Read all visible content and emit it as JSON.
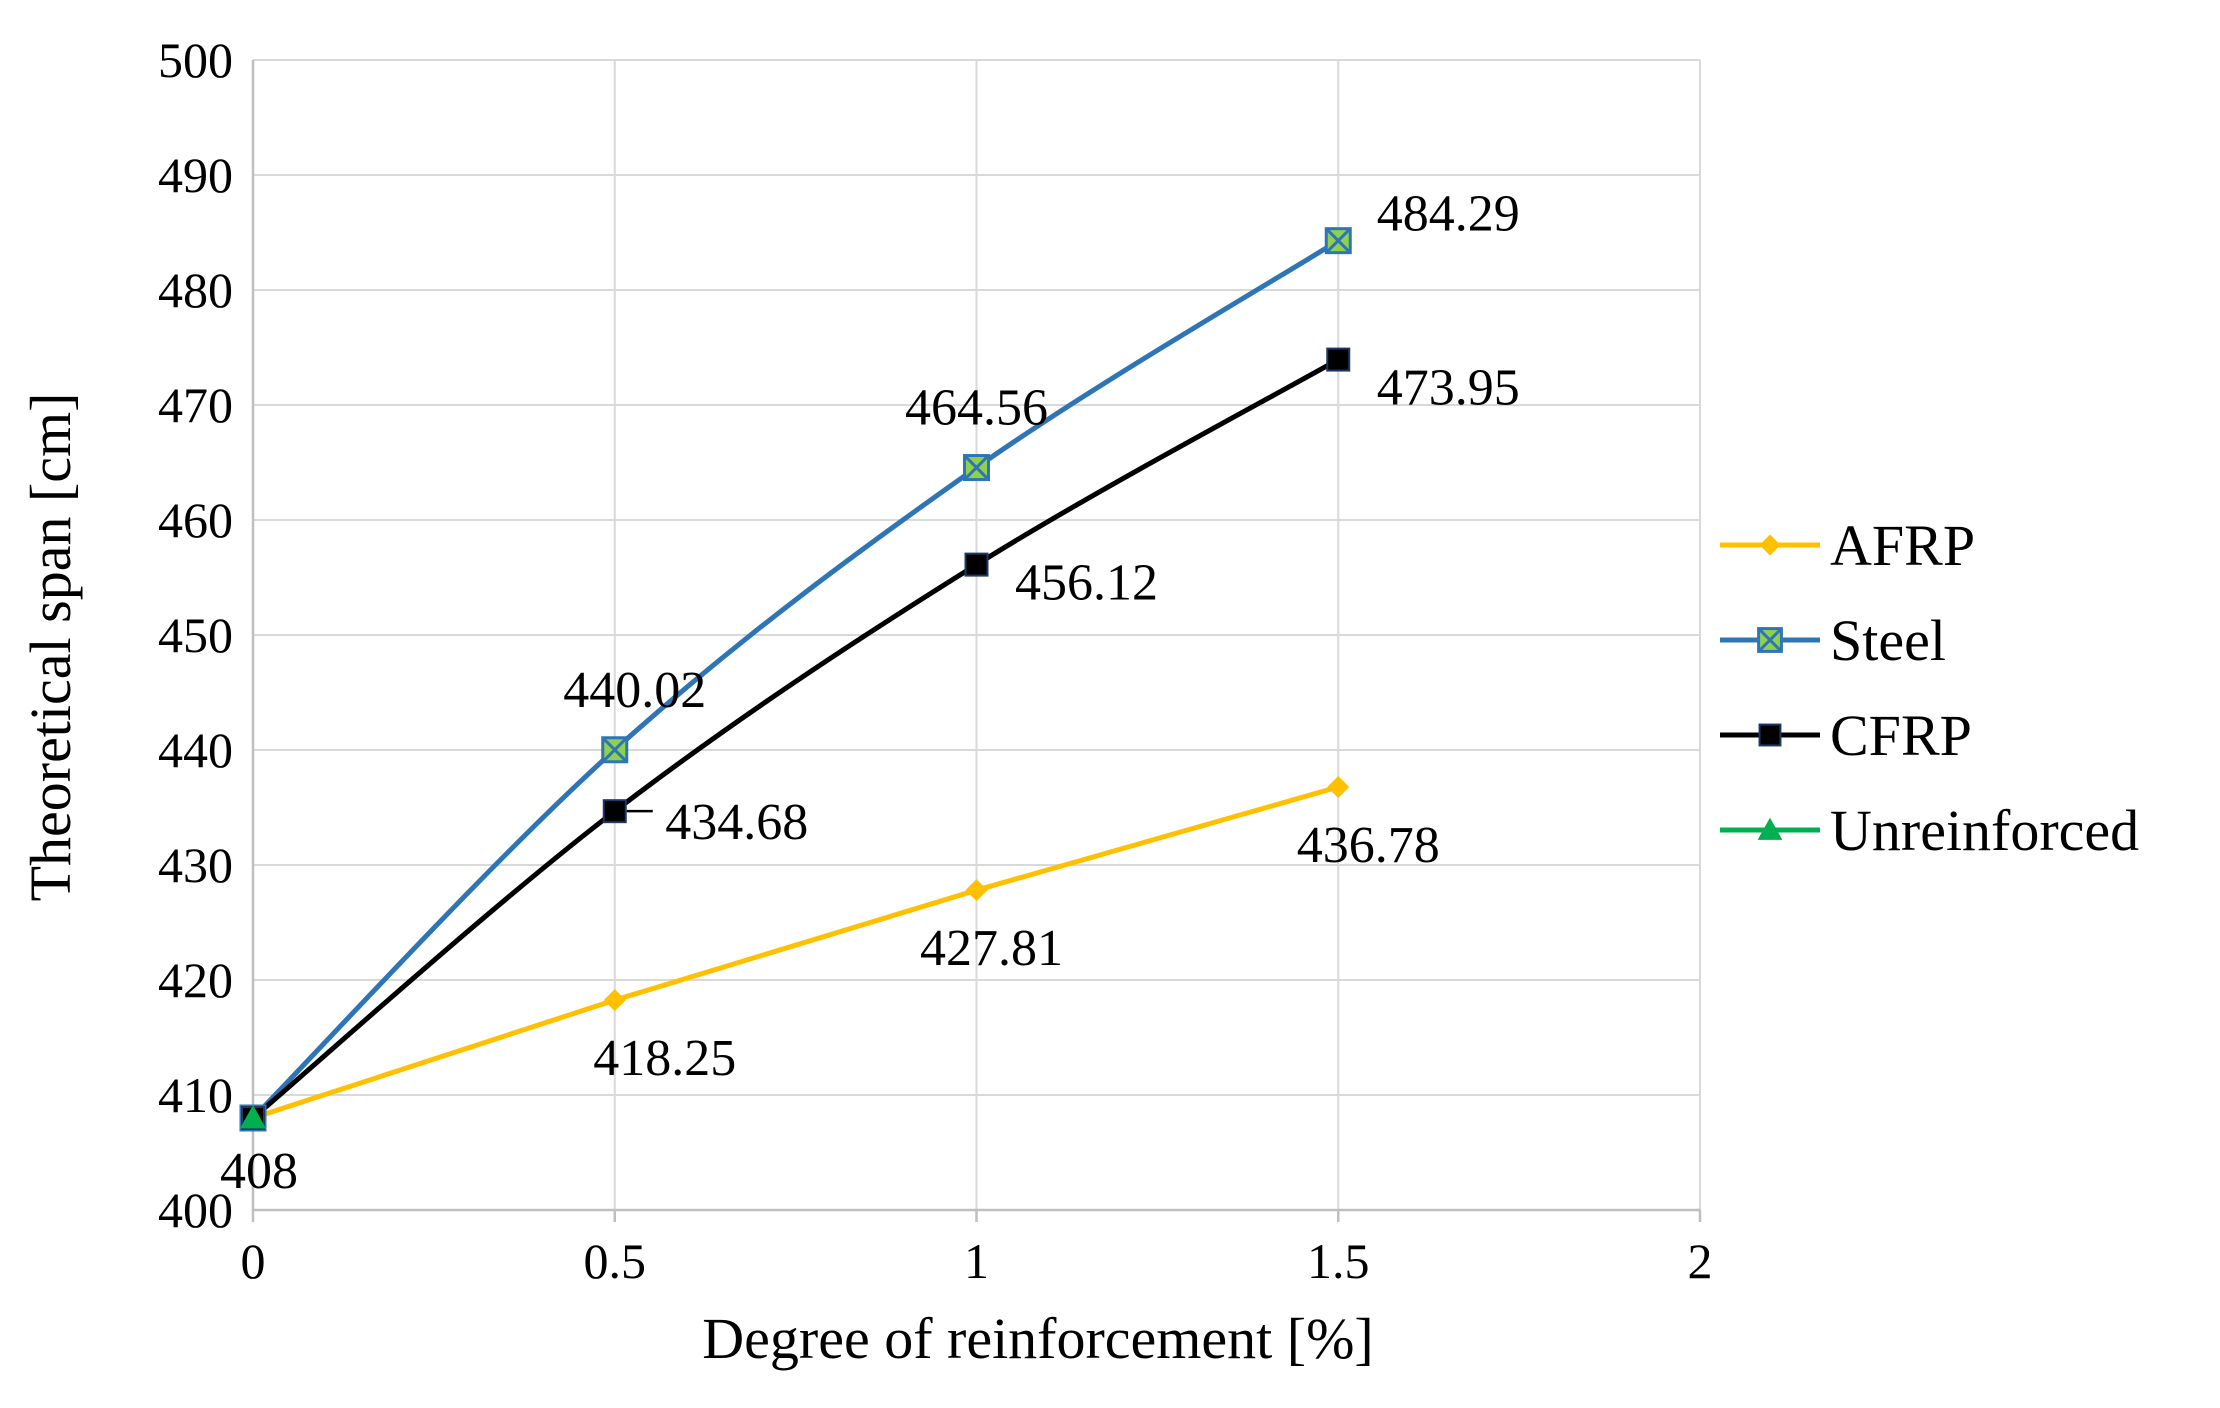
{
  "chart_data": {
    "type": "line",
    "title": "",
    "xlabel": "Degree of reinforcement [%]",
    "ylabel": "Theoretical span [cm]",
    "xlim": [
      0,
      2
    ],
    "ylim": [
      400,
      500
    ],
    "x_ticks": [
      "0",
      "0.5",
      "1",
      "1.5",
      "2"
    ],
    "y_ticks": [
      "400",
      "410",
      "420",
      "430",
      "440",
      "450",
      "460",
      "470",
      "480",
      "490",
      "500"
    ],
    "grid": true,
    "legend_position": "right",
    "series": [
      {
        "name": "AFRP",
        "color": "#FFC000",
        "marker": "diamond",
        "smooth": false,
        "x": [
          0,
          0.5,
          1,
          1.5
        ],
        "y": [
          408,
          418.25,
          427.81,
          436.78
        ],
        "labels": [
          "",
          "418.25",
          "427.81",
          "436.78"
        ]
      },
      {
        "name": "Steel",
        "color": "#2E75B6",
        "marker": "square-x",
        "smooth": true,
        "x": [
          0,
          0.5,
          1,
          1.5
        ],
        "y": [
          408,
          440.02,
          464.56,
          484.29
        ],
        "labels": [
          "",
          "440.02",
          "464.56",
          "484.29"
        ]
      },
      {
        "name": "CFRP",
        "color": "#000000",
        "marker": "square",
        "smooth": true,
        "x": [
          0,
          0.5,
          1,
          1.5
        ],
        "y": [
          408,
          434.68,
          456.12,
          473.95
        ],
        "labels": [
          "",
          "434.68",
          "456.12",
          "473.95"
        ]
      },
      {
        "name": "Unreinforced",
        "color": "#00B050",
        "marker": "triangle",
        "smooth": false,
        "x": [
          0
        ],
        "y": [
          408
        ],
        "labels": [
          "408"
        ]
      }
    ]
  }
}
